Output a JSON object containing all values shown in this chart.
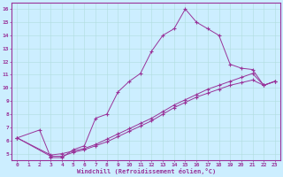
{
  "xlabel": "Windchill (Refroidissement éolien,°C)",
  "bg_color": "#cceeff",
  "line_color": "#993399",
  "grid_color": "#b0dddd",
  "xlim": [
    -0.5,
    23.5
  ],
  "ylim": [
    4.5,
    16.5
  ],
  "xticks": [
    0,
    1,
    2,
    3,
    4,
    5,
    6,
    7,
    8,
    9,
    10,
    11,
    12,
    13,
    14,
    15,
    16,
    17,
    18,
    19,
    20,
    21,
    22,
    23
  ],
  "yticks": [
    5,
    6,
    7,
    8,
    9,
    10,
    11,
    12,
    13,
    14,
    15,
    16
  ],
  "line1_x": [
    0,
    2,
    3,
    4,
    5,
    6,
    7,
    8,
    9,
    10,
    11,
    12,
    13,
    14,
    15,
    16,
    17,
    18,
    19,
    20,
    21,
    22,
    23
  ],
  "line1_y": [
    6.2,
    6.8,
    4.7,
    4.7,
    5.3,
    5.6,
    7.7,
    8.0,
    9.7,
    10.5,
    11.1,
    12.8,
    14.0,
    14.5,
    16.0,
    15.0,
    14.5,
    14.0,
    11.8,
    11.5,
    11.4,
    10.2,
    10.5
  ],
  "line2_x": [
    0,
    3,
    4,
    5,
    6,
    7,
    8,
    9,
    10,
    11,
    12,
    13,
    14,
    15,
    16,
    17,
    18,
    19,
    20,
    21,
    22,
    23
  ],
  "line2_y": [
    6.2,
    4.9,
    5.0,
    5.2,
    5.4,
    5.7,
    6.1,
    6.5,
    6.9,
    7.3,
    7.7,
    8.2,
    8.7,
    9.1,
    9.5,
    9.9,
    10.2,
    10.5,
    10.8,
    11.1,
    10.2,
    10.5
  ],
  "line3_x": [
    0,
    3,
    4,
    5,
    6,
    7,
    8,
    9,
    10,
    11,
    12,
    13,
    14,
    15,
    16,
    17,
    18,
    19,
    20,
    21,
    22,
    23
  ],
  "line3_y": [
    6.2,
    4.8,
    4.8,
    5.1,
    5.3,
    5.6,
    5.9,
    6.3,
    6.7,
    7.1,
    7.5,
    8.0,
    8.5,
    8.9,
    9.3,
    9.6,
    9.9,
    10.2,
    10.4,
    10.6,
    10.2,
    10.5
  ]
}
